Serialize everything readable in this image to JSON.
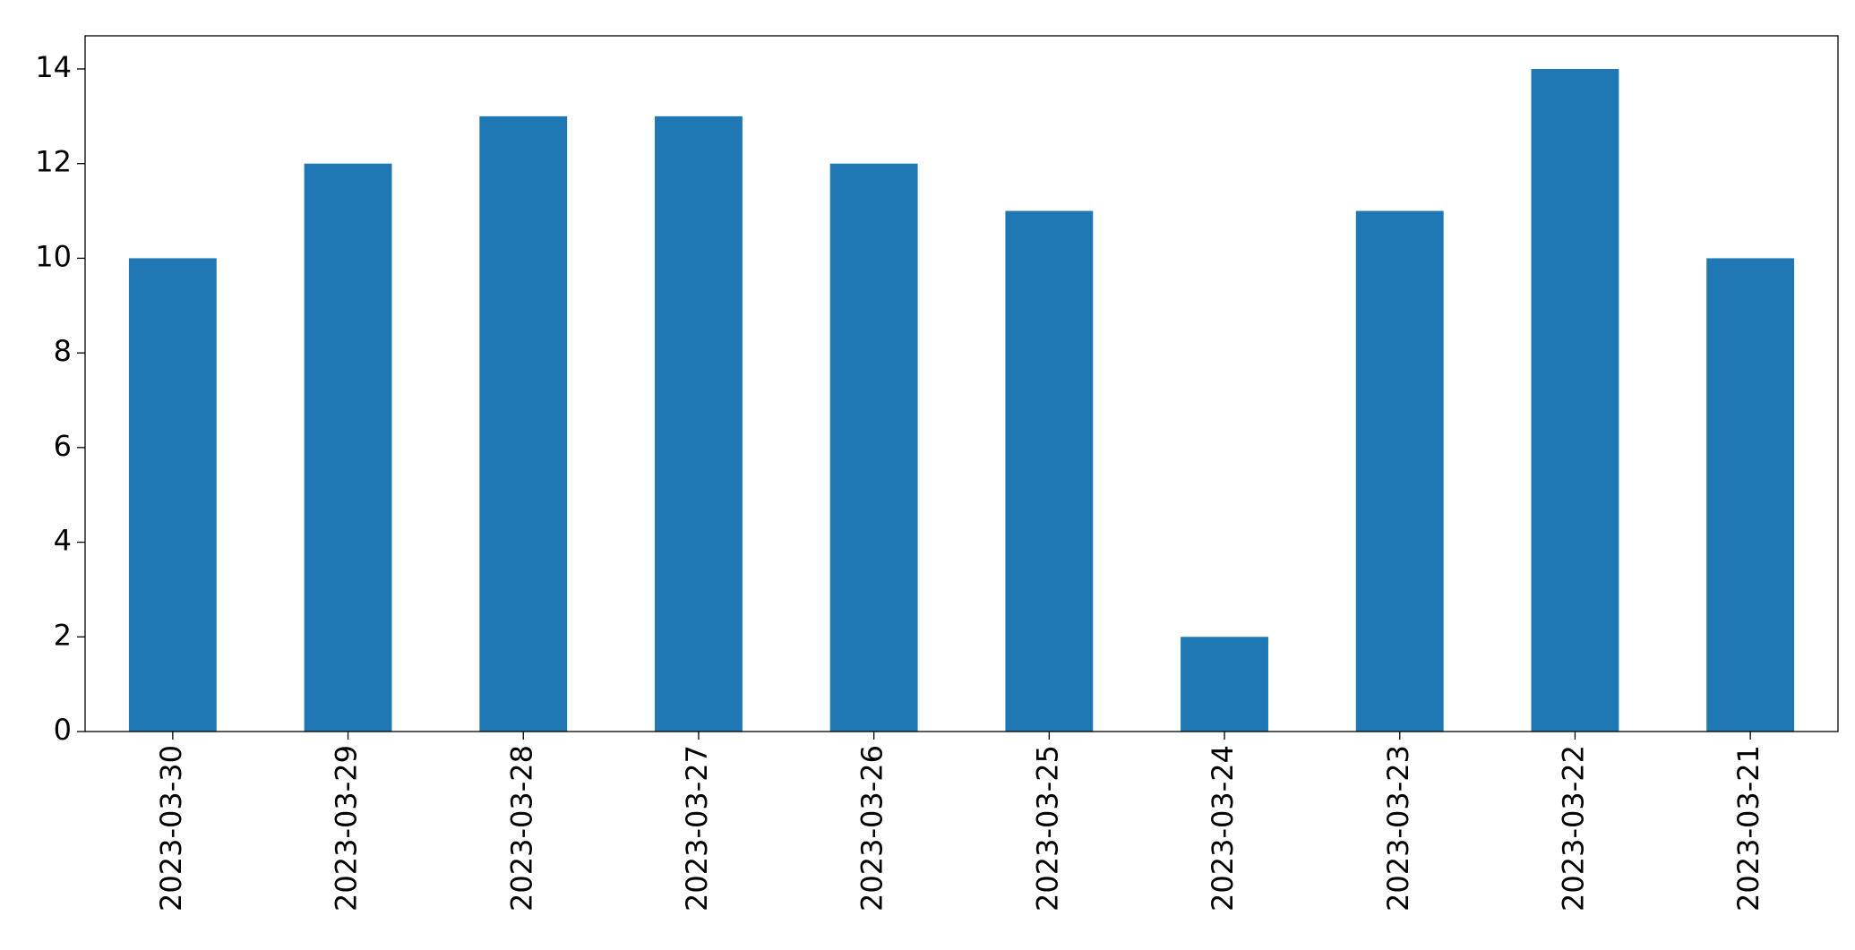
{
  "chart_data": {
    "type": "bar",
    "categories": [
      "2023-03-30",
      "2023-03-29",
      "2023-03-28",
      "2023-03-27",
      "2023-03-26",
      "2023-03-25",
      "2023-03-24",
      "2023-03-23",
      "2023-03-22",
      "2023-03-21"
    ],
    "values": [
      10,
      12,
      13,
      13,
      12,
      11,
      2,
      11,
      14,
      10
    ],
    "color": "#1f77b4",
    "ylim": [
      0,
      14.7
    ],
    "yticks": [
      0,
      2,
      4,
      6,
      8,
      10,
      12,
      14
    ],
    "grid": false
  }
}
